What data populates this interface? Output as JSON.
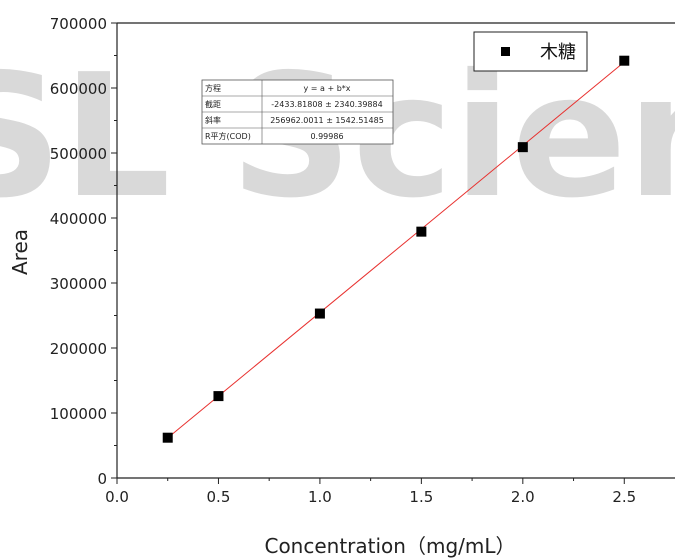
{
  "watermark": "SL Science",
  "chart_data": {
    "type": "scatter",
    "xlabel": "Concentration（mg/mL）",
    "ylabel": "Area",
    "xlim": [
      0.0,
      2.75
    ],
    "ylim": [
      0,
      700000
    ],
    "x_ticks": [
      0.0,
      0.5,
      1.0,
      1.5,
      2.0,
      2.5
    ],
    "x_tick_labels": [
      "0.0",
      "0.5",
      "1.0",
      "1.5",
      "2.0",
      "2.5"
    ],
    "y_ticks": [
      0,
      100000,
      200000,
      300000,
      400000,
      500000,
      600000,
      700000
    ],
    "y_tick_labels": [
      "0",
      "100000",
      "200000",
      "300000",
      "400000",
      "500000",
      "600000",
      "700000"
    ],
    "grid": false,
    "legend_placement": "top-right",
    "series": [
      {
        "name": "木糖",
        "marker": "square",
        "color": "#000000",
        "x": [
          0.25,
          0.5,
          1.0,
          1.5,
          2.0,
          2.5
        ],
        "y": [
          62000,
          126000,
          253000,
          379000,
          509000,
          642000
        ]
      }
    ],
    "fit_line": {
      "color": "#e8312f",
      "intercept": -2433.81808,
      "slope": 256962.0011,
      "x_range": [
        0.25,
        2.5
      ]
    },
    "fit_table": {
      "rows": [
        {
          "label": "方程",
          "value": "y = a + b*x"
        },
        {
          "label": "截距",
          "value": "-2433.81808 ± 2340.39884"
        },
        {
          "label": "斜率",
          "value": "256962.0011 ± 1542.51485"
        },
        {
          "label": "R平方(COD)",
          "value": "0.99986"
        }
      ]
    }
  }
}
